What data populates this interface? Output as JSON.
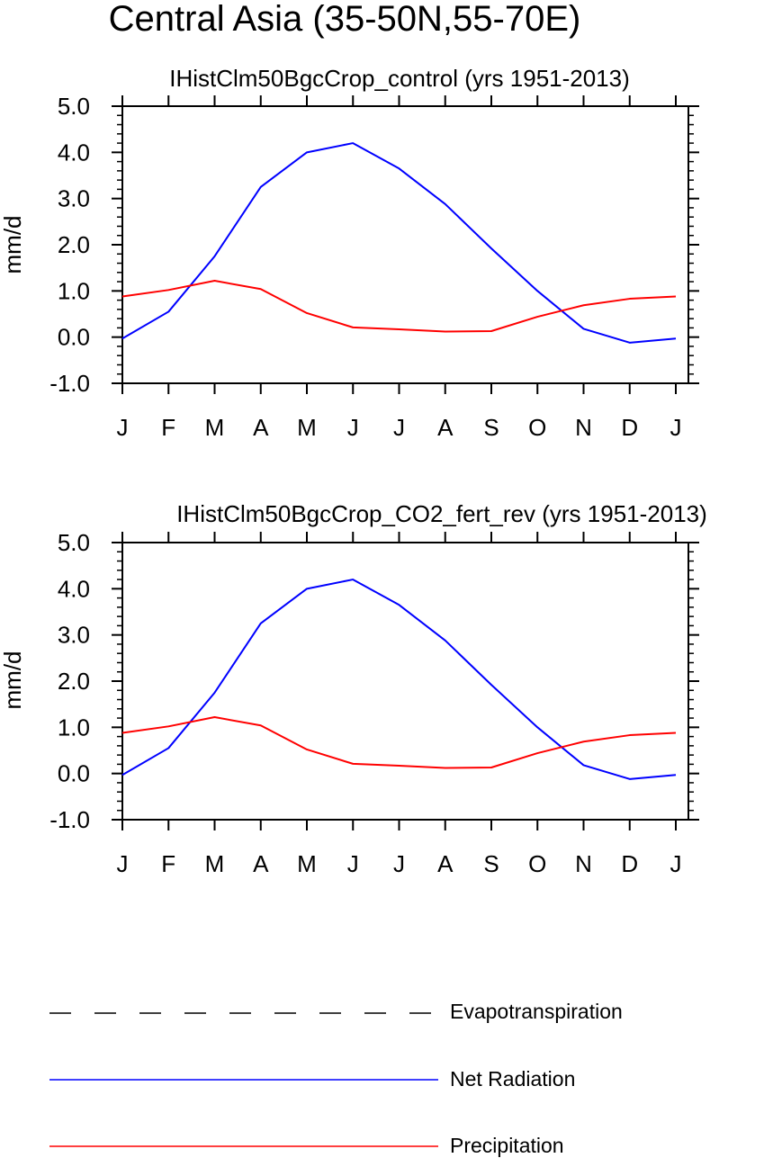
{
  "figure": {
    "title": "Central Asia (35-50N,55-70E)"
  },
  "chart_data": [
    {
      "type": "line",
      "title": "IHistClm50BgcCrop_control (yrs 1951-2013)",
      "xlabel": "",
      "ylabel": "mm/d",
      "categories": [
        "J",
        "F",
        "M",
        "A",
        "M",
        "J",
        "J",
        "A",
        "S",
        "O",
        "N",
        "D",
        "J"
      ],
      "ylim": [
        -1.0,
        5.0
      ],
      "yticks": [
        "-1.0",
        "0.0",
        "1.0",
        "2.0",
        "3.0",
        "4.0",
        "5.0"
      ],
      "grid": false,
      "series": [
        {
          "name": "Net Radiation",
          "color": "#0000ff",
          "dash": "solid",
          "values": [
            -0.03,
            0.55,
            1.75,
            3.25,
            4.0,
            4.2,
            3.65,
            2.88,
            1.92,
            1.0,
            0.18,
            -0.12,
            -0.03
          ]
        },
        {
          "name": "Precipitation",
          "color": "#ff0000",
          "dash": "solid",
          "values": [
            0.88,
            1.02,
            1.22,
            1.04,
            0.52,
            0.21,
            0.17,
            0.12,
            0.13,
            0.44,
            0.69,
            0.83,
            0.88
          ]
        }
      ]
    },
    {
      "type": "line",
      "title": "IHistClm50BgcCrop_CO2_fert_rev (yrs 1951-2013)",
      "xlabel": "",
      "ylabel": "mm/d",
      "categories": [
        "J",
        "F",
        "M",
        "A",
        "M",
        "J",
        "J",
        "A",
        "S",
        "O",
        "N",
        "D",
        "J"
      ],
      "ylim": [
        -1.0,
        5.0
      ],
      "yticks": [
        "-1.0",
        "0.0",
        "1.0",
        "2.0",
        "3.0",
        "4.0",
        "5.0"
      ],
      "grid": false,
      "series": [
        {
          "name": "Net Radiation",
          "color": "#0000ff",
          "dash": "solid",
          "values": [
            -0.03,
            0.55,
            1.75,
            3.25,
            4.0,
            4.2,
            3.65,
            2.88,
            1.92,
            1.0,
            0.18,
            -0.12,
            -0.03
          ]
        },
        {
          "name": "Precipitation",
          "color": "#ff0000",
          "dash": "solid",
          "values": [
            0.88,
            1.02,
            1.22,
            1.04,
            0.52,
            0.21,
            0.17,
            0.12,
            0.13,
            0.44,
            0.69,
            0.83,
            0.88
          ]
        }
      ]
    }
  ],
  "legend": {
    "placement": "bottom",
    "items": [
      {
        "label": "Evapotranspiration",
        "color": "#000000",
        "dash": "dashed"
      },
      {
        "label": "Net Radiation",
        "color": "#0000ff",
        "dash": "solid"
      },
      {
        "label": "Precipitation",
        "color": "#ff0000",
        "dash": "solid"
      }
    ]
  }
}
